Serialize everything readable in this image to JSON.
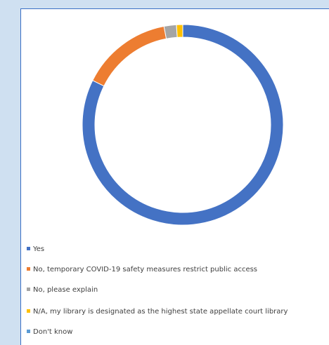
{
  "chart_data": {
    "type": "donut",
    "categories": [
      "Yes",
      "No, temporary COVID-19 safety measures restrict public access",
      "No, please explain",
      "N/A, my library is designated as the highest state appellate court library",
      "Don't know"
    ],
    "values": [
      82.3,
      14.7,
      2.0,
      1.0,
      0
    ],
    "colors": [
      "#4472c4",
      "#ed7d31",
      "#a5a5a5",
      "#ffc000",
      "#5b9bd5"
    ],
    "legend": "bottom-left"
  }
}
